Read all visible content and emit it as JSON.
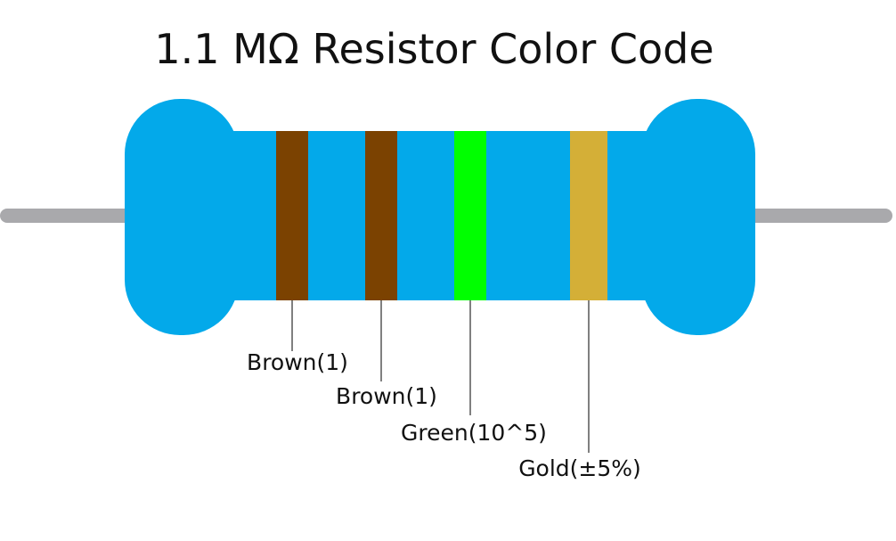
{
  "title": "1.1 MΩ Resistor Color Code",
  "colors": {
    "body": "#03A9EA",
    "lead": "#A9A9AC",
    "pointer": "#000000",
    "text": "#111111"
  },
  "bands": [
    {
      "name": "Brown",
      "color": "#7B4201",
      "label": "Brown(1)"
    },
    {
      "name": "Brown",
      "color": "#7B4201",
      "label": "Brown(1)"
    },
    {
      "name": "Green",
      "color": "#00FF00",
      "label": "Green(10^5)"
    },
    {
      "name": "Gold",
      "color": "#D4AF37",
      "label": "Gold(±5%)"
    }
  ]
}
